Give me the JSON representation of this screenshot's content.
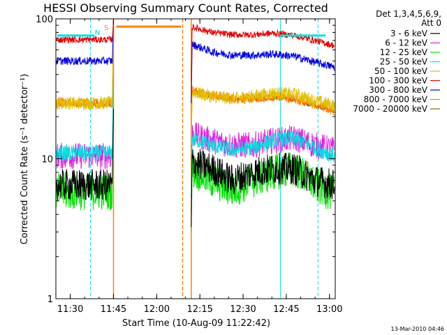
{
  "chart_data": {
    "type": "line",
    "title": "HESSI Observing Summary Count Rates, Corrected",
    "xlabel": "Start Time (10-Aug-09 11:22:42)",
    "ylabel": "Corrected Count Rate (s⁻¹ detector⁻¹)",
    "y_scale": "log",
    "ylim": [
      1,
      100
    ],
    "xlim": [
      "11:25",
      "13:02"
    ],
    "x_ticks": [
      "11:30",
      "11:45",
      "12:00",
      "12:15",
      "12:30",
      "12:45",
      "13:00"
    ],
    "y_ticks": [
      "1",
      "10",
      "100"
    ],
    "legend_header": [
      "Det 1,3,4,5,6,9,",
      "Att 0"
    ],
    "legend_placement": "right",
    "timestamp": "13-Mar-2010 04:46",
    "markers": [
      {
        "label": "N",
        "time": "11:37",
        "color": "#00c8c8"
      },
      {
        "label": "S",
        "time": "11:45",
        "color": "#ff8000"
      }
    ],
    "vertical_lines": [
      {
        "time": "11:25",
        "style": "solid",
        "color": "#00e0e0"
      },
      {
        "time": "11:37",
        "style": "dashed",
        "color": "#00e0e0"
      },
      {
        "time": "11:45",
        "style": "solid",
        "color": "#ff8000"
      },
      {
        "time": "12:09",
        "style": "dashed",
        "color": "#ff8000"
      },
      {
        "time": "12:12",
        "style": "solid",
        "color": "#ff8000"
      },
      {
        "time": "12:43",
        "style": "solid",
        "color": "#00e0e0"
      },
      {
        "time": "12:56",
        "style": "dashed",
        "color": "#00e0e0"
      }
    ],
    "series": [
      {
        "name": "3 - 6 keV",
        "color": "#000000",
        "pre": 6.5,
        "post": [
          9.5,
          8.5,
          7.0,
          8.0,
          8.5,
          8.5,
          7.0,
          6.5
        ],
        "noise": 0.12
      },
      {
        "name": "6 - 12 keV",
        "color": "#e020e0",
        "pre": 10.5,
        "post": [
          15.0,
          13.5,
          12.5,
          12.5,
          13.5,
          14.0,
          12.5,
          11.5
        ],
        "noise": 0.1
      },
      {
        "name": "12 - 25 keV",
        "color": "#00e000",
        "pre": 5.8,
        "post": [
          8.5,
          7.0,
          6.0,
          7.0,
          8.0,
          8.5,
          6.5,
          5.5
        ],
        "noise": 0.14
      },
      {
        "name": "25 - 50 keV",
        "color": "#00e0e0",
        "pre": 11.0,
        "post": [
          14.0,
          12.5,
          11.5,
          12.0,
          13.5,
          14.0,
          12.0,
          10.5
        ],
        "noise": 0.06
      },
      {
        "name": "50 - 100 keV",
        "color": "#e0c000",
        "pre": 25.0,
        "post": [
          30.0,
          28.0,
          27.0,
          28.0,
          29.5,
          29.0,
          26.0,
          24.0
        ],
        "noise": 0.05
      },
      {
        "name": "100 - 300 keV",
        "color": "#e00000",
        "pre": 71.0,
        "post": [
          88.0,
          80.0,
          77.0,
          77.0,
          79.0,
          76.0,
          70.0,
          64.0
        ],
        "noise": 0.025
      },
      {
        "name": "300 - 800 keV",
        "color": "#0000e0",
        "pre": 50.0,
        "post": [
          66.0,
          58.0,
          55.0,
          55.0,
          56.0,
          54.0,
          49.0,
          45.0
        ],
        "noise": 0.03
      },
      {
        "name": "800 - 7000 keV",
        "color": "#ff8000",
        "pre": 25.0,
        "post": [
          31.0,
          28.5,
          27.0,
          27.0,
          28.0,
          27.0,
          24.5,
          22.0
        ],
        "noise": 0.04
      },
      {
        "name": "7000 - 20000 keV",
        "color": "#a06000",
        "pre": 24.5,
        "post": [
          30.0,
          28.0,
          26.5,
          26.5,
          27.5,
          26.5,
          24.0,
          21.5
        ],
        "noise": 0.02
      }
    ],
    "saa_level": 85,
    "gap": {
      "start": "11:45",
      "end": "12:12"
    }
  }
}
